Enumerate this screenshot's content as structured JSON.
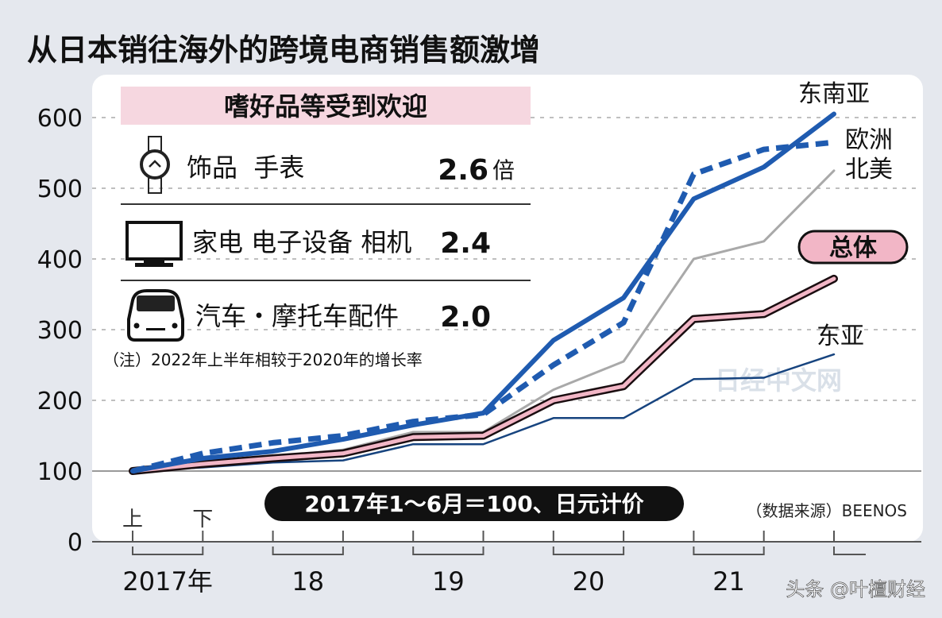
{
  "chart_data": {
    "type": "line",
    "title": "从日本销往海外的跨境电商销售额激增",
    "ylim": [
      0,
      650
    ],
    "yticks": [
      "0",
      "100",
      "200",
      "300",
      "400",
      "500",
      "600"
    ],
    "grid": true,
    "half_labels": [
      "上",
      "下"
    ],
    "year_labels": [
      "2017年",
      "18",
      "19",
      "20",
      "21"
    ],
    "x": [
      "2017上",
      "2017下",
      "2018上",
      "2018下",
      "2019上",
      "2019下",
      "2020上",
      "2020下",
      "2021上",
      "2021下",
      "2022上"
    ],
    "series": [
      {
        "name": "东南亚",
        "style": "solid-blue",
        "color": "#1f5bb0",
        "values": [
          100,
          118,
          128,
          145,
          165,
          182,
          285,
          345,
          485,
          530,
          605
        ]
      },
      {
        "name": "欧洲",
        "style": "dashed-blue",
        "color": "#1f5bb0",
        "values": [
          100,
          125,
          140,
          150,
          170,
          180,
          250,
          310,
          520,
          555,
          565
        ]
      },
      {
        "name": "北美",
        "style": "gray",
        "color": "#a9a9a9",
        "values": [
          100,
          112,
          120,
          130,
          155,
          155,
          215,
          255,
          400,
          425,
          525
        ]
      },
      {
        "name": "总体",
        "style": "pink-outlined",
        "color": "#f2b6c6",
        "values": [
          100,
          110,
          118,
          125,
          148,
          150,
          200,
          220,
          315,
          322,
          372
        ]
      },
      {
        "name": "东亚",
        "style": "thin-navy",
        "color": "#17447f",
        "values": [
          100,
          105,
          112,
          115,
          138,
          138,
          175,
          175,
          230,
          232,
          265
        ]
      }
    ],
    "base_note": "2017年1～6月＝100、日元计价",
    "source": "（数据来源）BEENOS"
  },
  "inset": {
    "heading": "嗜好品等受到欢迎",
    "items": [
      {
        "icon": "watch-icon",
        "label": "饰品  手表",
        "value": "2.6",
        "unit": "倍"
      },
      {
        "icon": "tv-icon",
        "label": "家电 电子设备 相机",
        "value": "2.4",
        "unit": ""
      },
      {
        "icon": "car-icon",
        "label": "汽车・摩托车配件",
        "value": "2.0",
        "unit": ""
      }
    ],
    "note": "（注）2022年上半年相较于2020年的增长率"
  },
  "watermarks": {
    "center": "日经中文网",
    "bottom_right": "头条 @叶檀财经"
  },
  "colors": {
    "background": "#e5e8ee",
    "panel": "#ffffff",
    "accent_blue": "#1f5bb0",
    "pink": "#f2b6c6",
    "heading_pink": "#f6d7e0"
  }
}
